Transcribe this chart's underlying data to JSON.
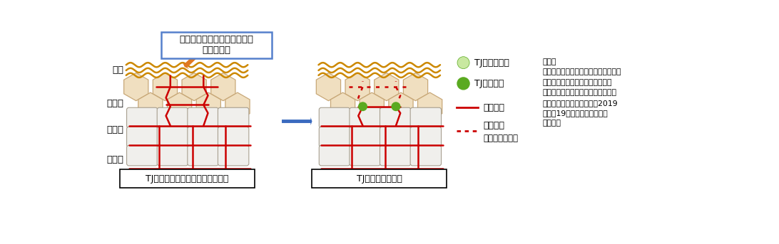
{
  "box_label": "グリチルリチン酸ジカリウム\n・異性化糖",
  "label_left": "TJが未成熟な皮膚（敏感肌など）",
  "label_right": "TJが成熟した皮膚",
  "layer_labels": [
    "角層",
    "顆粒層",
    "有棘層",
    "基底層"
  ],
  "citation": "引用：\nプレスリリース「皮膚バリアと感覚神\n経の関係を可視化　－アトピー性\n皮膚炎などの痒みのメカニズムに新\n知見－」（理化学研究所、2019\n年６月19日）に掲載の図３を\n一部改変",
  "bg_color": "#ffffff",
  "hex_fill": "#f0dfc0",
  "hex_edge": "#c8a878",
  "rect_fill": "#f0efec",
  "rect_edge": "#a8a090",
  "stratum_color": "#cc8800",
  "nerve_color": "#cc0000",
  "arrow_orange": "#e07820",
  "arrow_blue": "#3a6abf",
  "label_box_color": "#5580cc",
  "tj_light": "#c8e8a0",
  "tj_dark": "#5aaa20",
  "leg_tj_immature": "TJ（未成熟）",
  "leg_tj_mature": "TJ（成熟）",
  "leg_nerve_solid": "神経線維",
  "leg_nerve_dot": "神経線維",
  "leg_nerve_dot2": "（剪定される）"
}
